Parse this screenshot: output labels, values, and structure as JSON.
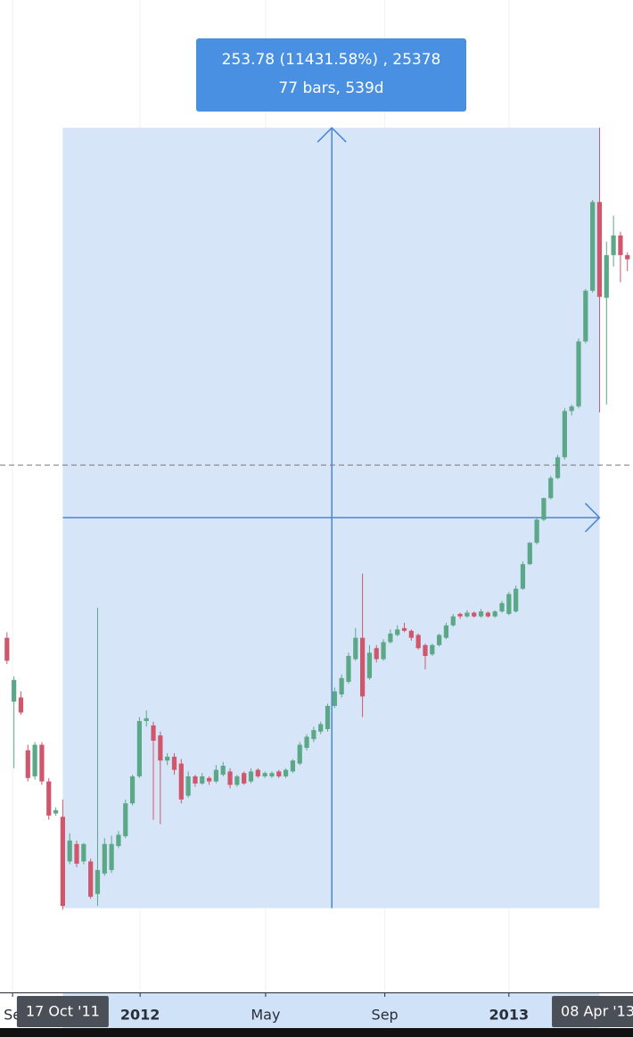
{
  "chart_data": {
    "type": "candlestick",
    "log_scale": true,
    "up_color": "#5aa887",
    "down_color": "#d0566c",
    "ylim": [
      1.33,
      557
    ],
    "xlim": [
      -1.0,
      89.8
    ],
    "xticks": [
      {
        "value": 0.8,
        "label": "Se"
      },
      {
        "value": 19.1,
        "label": "2012"
      },
      {
        "value": 37.1,
        "label": "May"
      },
      {
        "value": 54.2,
        "label": "Sep"
      },
      {
        "value": 72.0,
        "label": "2013"
      }
    ],
    "range_labels": [
      {
        "value": 8,
        "label": "17 Oct '11"
      },
      {
        "value": 85,
        "label": "08 Apr '13"
      }
    ],
    "price_line": 32.9,
    "measure": {
      "from": 8,
      "to": 85,
      "low": 2.22,
      "high": 256,
      "arrow_x": 46.6,
      "arrow_y": 23.9,
      "line1": "253.78 (11431.58%) , 25378",
      "line2": "77 bars, 539d"
    },
    "open": [
      11.5,
      7.8,
      8.0,
      5.8,
      4.95,
      6.0,
      4.8,
      3.95,
      3.87,
      2.95,
      3.28,
      2.95,
      2.95,
      2.42,
      2.74,
      2.8,
      3.24,
      3.44,
      4.2,
      4.95,
      6.93,
      6.75,
      6.35,
      5.45,
      5.58,
      5.35,
      4.4,
      4.95,
      4.74,
      4.9,
      4.8,
      5.0,
      5.1,
      4.7,
      5.05,
      4.8,
      5.15,
      4.95,
      4.95,
      5.1,
      4.95,
      5.1,
      5.35,
      5.89,
      6.21,
      6.5,
      6.6,
      7.6,
      8.15,
      8.8,
      10.1,
      11.5,
      9.0,
      10.8,
      10.1,
      11.2,
      11.7,
      12.2,
      12.0,
      11.7,
      11.0,
      10.4,
      11.0,
      11.5,
      12.4,
      13.3,
      13.1,
      13.4,
      13.1,
      13.4,
      13.1,
      13.5,
      13.3,
      13.5,
      15.5,
      18.0,
      20.5,
      23.6,
      26.9,
      30.4,
      34.5,
      45.7,
      47.0,
      69.8,
      95.0,
      163,
      91.0,
      118,
      133,
      118
    ],
    "high": [
      11.9,
      9.1,
      8.3,
      6.0,
      6.1,
      6.1,
      4.9,
      4.1,
      4.3,
      3.5,
      3.35,
      3.3,
      3.0,
      13.8,
      3.4,
      3.45,
      3.55,
      4.3,
      5.0,
      7.1,
      7.4,
      6.9,
      6.5,
      5.7,
      5.7,
      5.5,
      5.1,
      5.0,
      5.05,
      4.95,
      5.3,
      5.4,
      5.2,
      5.0,
      5.1,
      5.2,
      5.2,
      5.1,
      5.1,
      5.15,
      5.2,
      5.5,
      6.1,
      6.4,
      6.7,
      6.9,
      7.7,
      8.5,
      9.2,
      10.5,
      12.2,
      17.0,
      11.0,
      11.0,
      11.4,
      12.1,
      12.4,
      12.6,
      12.1,
      11.8,
      11.1,
      11.1,
      11.8,
      12.6,
      13.3,
      13.4,
      13.6,
      13.5,
      13.7,
      13.5,
      13.6,
      14.4,
      15.2,
      15.8,
      18.3,
      20.6,
      24.0,
      27.0,
      30.8,
      35.0,
      46.5,
      47.5,
      71.0,
      96.0,
      165,
      256,
      128,
      150,
      136,
      120
    ],
    "low": [
      9.8,
      5.2,
      7.2,
      4.8,
      4.85,
      4.7,
      3.8,
      3.9,
      2.2,
      2.9,
      2.85,
      2.9,
      2.35,
      2.25,
      2.7,
      2.75,
      3.2,
      3.4,
      4.15,
      4.9,
      6.7,
      3.8,
      3.7,
      5.3,
      5.0,
      4.2,
      4.35,
      4.65,
      4.7,
      4.7,
      4.75,
      4.95,
      4.6,
      4.65,
      4.7,
      4.75,
      4.9,
      4.9,
      4.9,
      4.9,
      4.9,
      5.05,
      5.3,
      5.8,
      6.1,
      6.4,
      6.5,
      7.5,
      8.0,
      8.7,
      10.0,
      7.1,
      8.9,
      9.9,
      10.0,
      11.1,
      11.6,
      11.9,
      11.3,
      10.7,
      9.5,
      10.3,
      10.9,
      11.4,
      12.3,
      12.9,
      13.0,
      13.0,
      13.0,
      13.0,
      13.0,
      13.4,
      13.2,
      13.4,
      15.4,
      17.9,
      20.3,
      23.4,
      26.7,
      30.2,
      34.0,
      44.5,
      46.5,
      69.0,
      94.0,
      45.3,
      47.5,
      110,
      100,
      107
    ],
    "close": [
      10.0,
      8.9,
      7.3,
      4.9,
      6.0,
      4.8,
      3.9,
      4.03,
      2.25,
      3.35,
      2.91,
      3.28,
      2.38,
      2.8,
      3.28,
      3.28,
      3.47,
      4.2,
      4.95,
      6.93,
      7.05,
      6.15,
      5.45,
      5.58,
      5.15,
      4.3,
      4.95,
      4.74,
      4.95,
      4.8,
      5.15,
      5.28,
      4.7,
      4.95,
      4.74,
      5.1,
      4.95,
      5.05,
      5.05,
      4.95,
      5.15,
      5.45,
      6.0,
      6.3,
      6.56,
      6.8,
      7.6,
      8.3,
      9.0,
      10.3,
      11.5,
      8.05,
      10.5,
      10.1,
      11.2,
      11.8,
      12.1,
      12.0,
      11.5,
      10.8,
      10.3,
      11.0,
      11.7,
      12.4,
      13.1,
      13.1,
      13.4,
      13.1,
      13.5,
      13.1,
      13.5,
      14.2,
      15.0,
      15.5,
      18.0,
      20.5,
      23.6,
      26.9,
      30.4,
      34.5,
      45.7,
      47.0,
      69.8,
      95.0,
      163,
      91.5,
      118,
      133,
      118,
      115
    ]
  }
}
